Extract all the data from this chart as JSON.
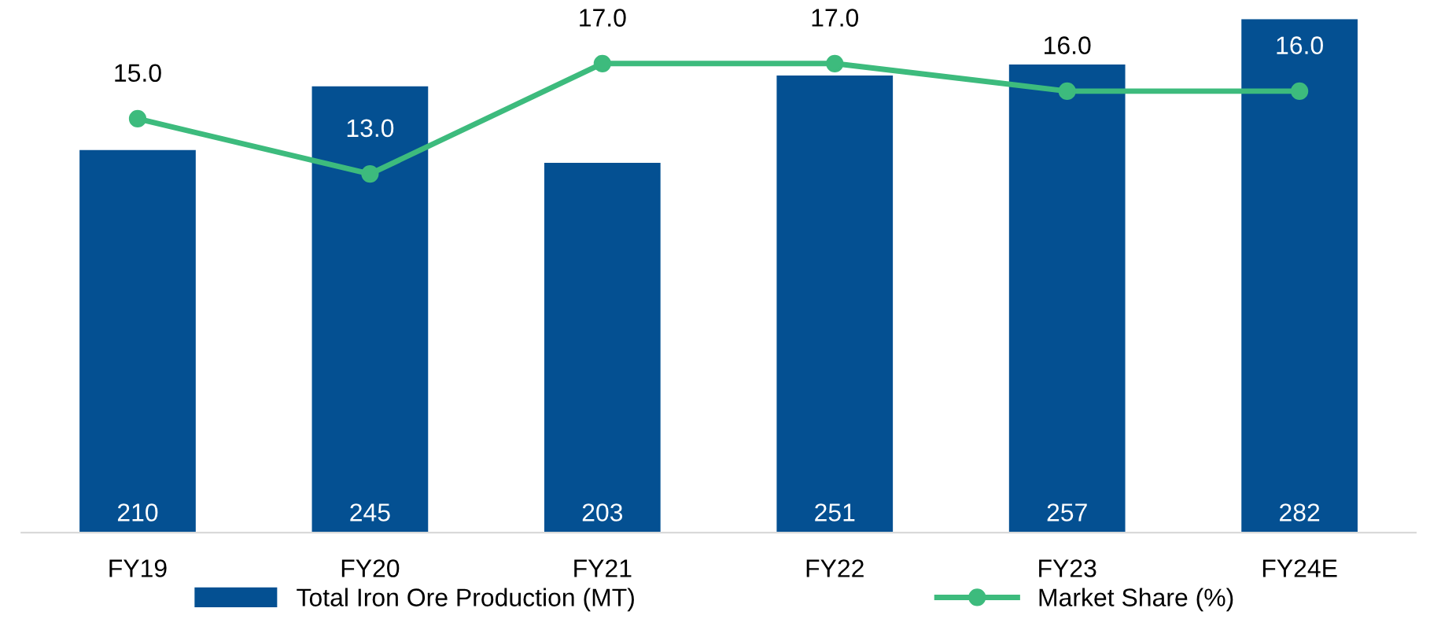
{
  "chart_data": {
    "type": "bar",
    "categories": [
      "FY19",
      "FY20",
      "FY21",
      "FY22",
      "FY23",
      "FY24E"
    ],
    "series": [
      {
        "name": "Total Iron Ore Production (MT)",
        "color": "#045092",
        "values": [
          210,
          245,
          203,
          251,
          257,
          282
        ]
      },
      {
        "name": "Market Share (%)",
        "type": "line",
        "axis": "y2",
        "color": "#3dbb7d",
        "values": [
          15.0,
          13.0,
          17.0,
          17.0,
          16.0,
          16.0
        ],
        "value_labels": [
          "15.0",
          "13.0",
          "17.0",
          "17.0",
          "16.0",
          "16.0"
        ]
      }
    ],
    "data_labels": true,
    "legend": "bottom",
    "marker": "circle",
    "grid": false,
    "tick_labels": "x"
  }
}
